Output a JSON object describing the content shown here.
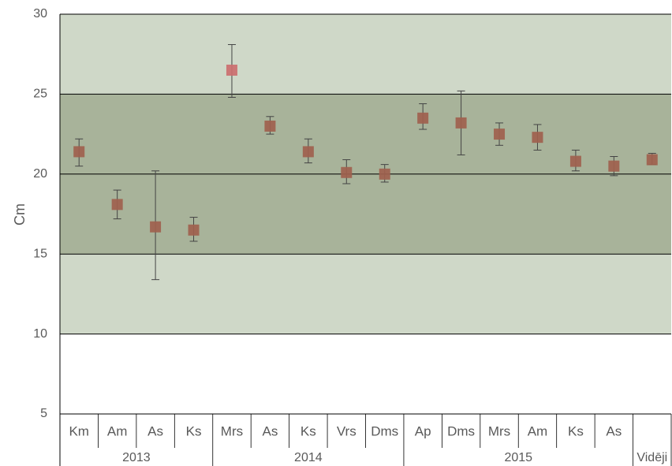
{
  "chart_data": {
    "type": "scatter",
    "ylabel": "Cm",
    "xlabel": "",
    "title": "",
    "ylim": [
      5,
      30
    ],
    "yticks": [
      5,
      10,
      15,
      20,
      25,
      30
    ],
    "grid": "horizontal",
    "bands": [
      {
        "from": 10,
        "to": 30,
        "color": "#cfd8c8"
      },
      {
        "from": 15,
        "to": 25,
        "color": "#a8b39a"
      }
    ],
    "categories": [
      "Km",
      "Am",
      "As",
      "Ks",
      "Mrs",
      "As",
      "Ks",
      "Vrs",
      "Dms",
      "Ap",
      "Dms",
      "Mrs",
      "Am",
      "Ks",
      "As",
      ""
    ],
    "groups": [
      {
        "label": "2013",
        "span": 4
      },
      {
        "label": "2014",
        "span": 5
      },
      {
        "label": "2015",
        "span": 6
      },
      {
        "label": "Vidēji",
        "span": 1
      }
    ],
    "series": [
      {
        "values": [
          21.4,
          18.1,
          16.7,
          16.5,
          26.5,
          23.0,
          21.4,
          20.1,
          20.0,
          23.5,
          23.2,
          22.5,
          22.3,
          20.8,
          20.5,
          20.9
        ],
        "err_low": [
          20.5,
          17.2,
          13.4,
          15.8,
          24.8,
          22.5,
          20.7,
          19.4,
          19.5,
          22.8,
          21.2,
          21.8,
          21.5,
          20.2,
          19.9,
          20.6
        ],
        "err_high": [
          22.2,
          19.0,
          20.2,
          17.3,
          28.1,
          23.6,
          22.2,
          20.9,
          20.6,
          24.4,
          25.2,
          23.2,
          23.1,
          21.5,
          21.1,
          21.3
        ],
        "colors": [
          "#a0614e",
          "#a0614e",
          "#a0614e",
          "#a0614e",
          "#cc6f6f",
          "#a0614e",
          "#a0614e",
          "#a0614e",
          "#a0614e",
          "#a0614e",
          "#a0614e",
          "#a0614e",
          "#a0614e",
          "#a0614e",
          "#a0614e",
          "#a0614e"
        ]
      }
    ]
  }
}
